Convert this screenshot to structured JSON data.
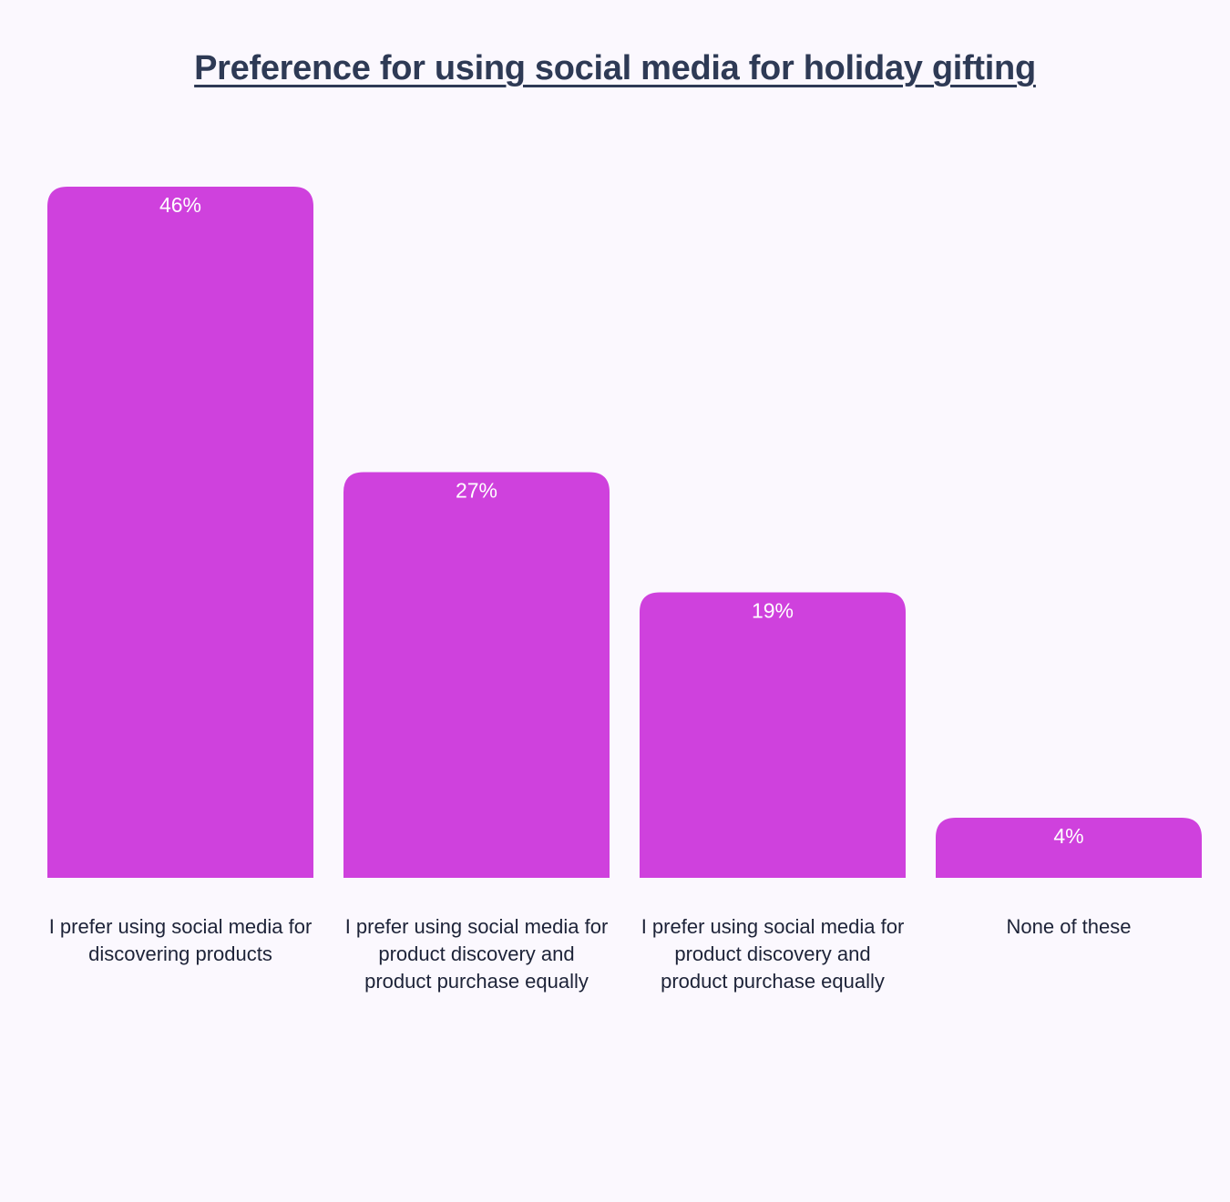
{
  "chart_data": {
    "type": "bar",
    "title": "Preference for using social media for holiday gifting",
    "categories": [
      "I prefer using social media for discovering products",
      "I prefer using social media for product discovery and product purchase equally",
      "I prefer using social media for product discovery and product purchase equally",
      "None of these"
    ],
    "values": [
      46,
      27,
      19,
      4
    ],
    "value_labels": [
      "46%",
      "27%",
      "19%",
      "4%"
    ],
    "xlabel": "",
    "ylabel": "",
    "ylim": [
      0,
      46
    ],
    "grid": false,
    "bar_color": "#cf41dd",
    "title_color": "#2e3a55",
    "label_color": "#1d2338",
    "value_label_color": "#ffffff",
    "background": "#fbf8fe"
  }
}
